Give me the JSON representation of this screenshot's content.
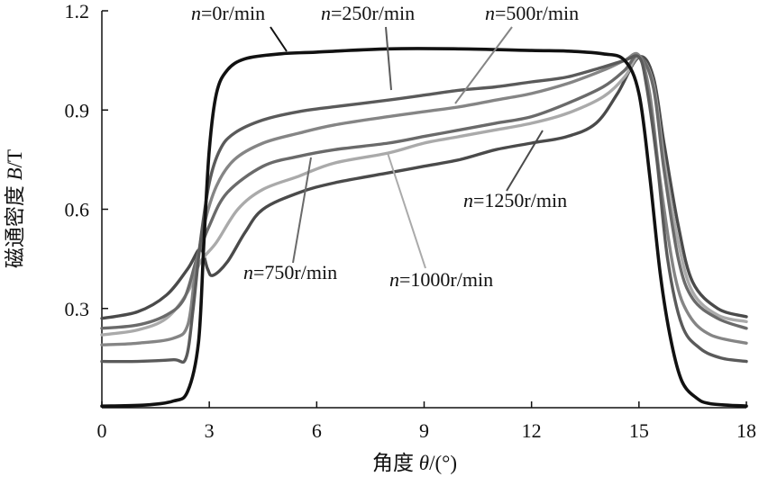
{
  "chart_data": {
    "type": "line",
    "xlabel_text": "角度 ",
    "xlabel_symbol": "θ",
    "xlabel_unit": "/(°)",
    "ylabel_text": "磁通密度 ",
    "ylabel_symbol": "B",
    "ylabel_unit": "/T",
    "xlim": [
      0,
      18
    ],
    "ylim": [
      0,
      1.2
    ],
    "x_ticks": [
      0,
      3,
      6,
      9,
      12,
      15,
      18
    ],
    "y_ticks": [
      0.3,
      0.6,
      0.9,
      1.2
    ],
    "x_tick_labels": [
      "0",
      "3",
      "6",
      "9",
      "12",
      "15",
      "18"
    ],
    "y_tick_labels": [
      "0.3",
      "0.6",
      "0.9",
      "1.2"
    ],
    "grid": false,
    "series": [
      {
        "name_var": "n",
        "name_value": "=0r/min",
        "color": "#111111",
        "points": [
          [
            0,
            0.005
          ],
          [
            1.2,
            0.008
          ],
          [
            2.0,
            0.02
          ],
          [
            2.4,
            0.05
          ],
          [
            2.7,
            0.2
          ],
          [
            2.85,
            0.5
          ],
          [
            3.0,
            0.78
          ],
          [
            3.2,
            0.95
          ],
          [
            3.5,
            1.02
          ],
          [
            4.0,
            1.055
          ],
          [
            5.0,
            1.07
          ],
          [
            6.0,
            1.075
          ],
          [
            8.0,
            1.085
          ],
          [
            10.0,
            1.085
          ],
          [
            12.0,
            1.08
          ],
          [
            13.0,
            1.078
          ],
          [
            14.0,
            1.07
          ],
          [
            14.6,
            1.05
          ],
          [
            15.0,
            0.95
          ],
          [
            15.3,
            0.7
          ],
          [
            15.6,
            0.4
          ],
          [
            15.9,
            0.2
          ],
          [
            16.2,
            0.08
          ],
          [
            16.6,
            0.03
          ],
          [
            17.0,
            0.012
          ],
          [
            18.0,
            0.005
          ]
        ]
      },
      {
        "name_var": "n",
        "name_value": "=250r/min",
        "color": "#5a5a5a",
        "points": [
          [
            0,
            0.14
          ],
          [
            1.0,
            0.14
          ],
          [
            2.0,
            0.145
          ],
          [
            2.35,
            0.15
          ],
          [
            2.55,
            0.3
          ],
          [
            2.75,
            0.5
          ],
          [
            3.0,
            0.68
          ],
          [
            3.3,
            0.78
          ],
          [
            3.7,
            0.83
          ],
          [
            4.5,
            0.87
          ],
          [
            5.5,
            0.895
          ],
          [
            6.5,
            0.91
          ],
          [
            8.0,
            0.93
          ],
          [
            9.0,
            0.945
          ],
          [
            10.0,
            0.96
          ],
          [
            11.0,
            0.97
          ],
          [
            12.0,
            0.985
          ],
          [
            13.0,
            1.0
          ],
          [
            14.0,
            1.03
          ],
          [
            14.6,
            1.05
          ],
          [
            15.0,
            1.06
          ],
          [
            15.2,
            0.98
          ],
          [
            15.5,
            0.75
          ],
          [
            15.8,
            0.45
          ],
          [
            16.2,
            0.25
          ],
          [
            16.7,
            0.18
          ],
          [
            17.3,
            0.15
          ],
          [
            18.0,
            0.14
          ]
        ]
      },
      {
        "name_var": "n",
        "name_value": "=500r/min",
        "color": "#858585",
        "points": [
          [
            0,
            0.19
          ],
          [
            1.0,
            0.195
          ],
          [
            2.0,
            0.21
          ],
          [
            2.4,
            0.25
          ],
          [
            2.6,
            0.4
          ],
          [
            2.85,
            0.55
          ],
          [
            3.2,
            0.67
          ],
          [
            3.7,
            0.75
          ],
          [
            4.5,
            0.8
          ],
          [
            5.5,
            0.83
          ],
          [
            6.5,
            0.855
          ],
          [
            8.0,
            0.88
          ],
          [
            9.0,
            0.895
          ],
          [
            10.0,
            0.91
          ],
          [
            11.0,
            0.93
          ],
          [
            12.0,
            0.95
          ],
          [
            13.0,
            0.98
          ],
          [
            14.0,
            1.02
          ],
          [
            14.6,
            1.05
          ],
          [
            15.0,
            1.065
          ],
          [
            15.3,
            0.95
          ],
          [
            15.6,
            0.68
          ],
          [
            16.0,
            0.4
          ],
          [
            16.4,
            0.28
          ],
          [
            17.0,
            0.22
          ],
          [
            18.0,
            0.195
          ]
        ]
      },
      {
        "name_var": "n",
        "name_value": "=750r/min",
        "color": "#6a6a6a",
        "points": [
          [
            0,
            0.24
          ],
          [
            1.0,
            0.25
          ],
          [
            1.8,
            0.28
          ],
          [
            2.3,
            0.33
          ],
          [
            2.65,
            0.45
          ],
          [
            3.0,
            0.55
          ],
          [
            3.5,
            0.65
          ],
          [
            4.5,
            0.73
          ],
          [
            5.5,
            0.76
          ],
          [
            6.5,
            0.78
          ],
          [
            8.0,
            0.8
          ],
          [
            9.0,
            0.82
          ],
          [
            10.0,
            0.84
          ],
          [
            11.0,
            0.86
          ],
          [
            12.0,
            0.88
          ],
          [
            13.0,
            0.92
          ],
          [
            14.0,
            0.97
          ],
          [
            14.6,
            1.02
          ],
          [
            15.0,
            1.065
          ],
          [
            15.4,
            0.97
          ],
          [
            15.7,
            0.72
          ],
          [
            16.1,
            0.45
          ],
          [
            16.5,
            0.33
          ],
          [
            17.2,
            0.27
          ],
          [
            18.0,
            0.24
          ]
        ]
      },
      {
        "name_var": "n",
        "name_value": "=1000r/min",
        "color": "#aaaaaa",
        "points": [
          [
            0,
            0.22
          ],
          [
            1.0,
            0.235
          ],
          [
            1.8,
            0.27
          ],
          [
            2.4,
            0.35
          ],
          [
            2.75,
            0.44
          ],
          [
            3.2,
            0.5
          ],
          [
            3.8,
            0.6
          ],
          [
            4.5,
            0.66
          ],
          [
            5.5,
            0.7
          ],
          [
            6.5,
            0.74
          ],
          [
            8.0,
            0.77
          ],
          [
            9.0,
            0.8
          ],
          [
            10.0,
            0.82
          ],
          [
            11.0,
            0.84
          ],
          [
            12.0,
            0.86
          ],
          [
            13.0,
            0.89
          ],
          [
            14.0,
            0.94
          ],
          [
            14.6,
            1.0
          ],
          [
            15.0,
            1.06
          ],
          [
            15.4,
            0.98
          ],
          [
            15.7,
            0.75
          ],
          [
            16.1,
            0.5
          ],
          [
            16.5,
            0.35
          ],
          [
            17.2,
            0.28
          ],
          [
            18.0,
            0.26
          ]
        ]
      },
      {
        "name_var": "n",
        "name_value": "=1250r/min",
        "color": "#4a4a4a",
        "points": [
          [
            0,
            0.27
          ],
          [
            1.0,
            0.29
          ],
          [
            1.8,
            0.34
          ],
          [
            2.4,
            0.42
          ],
          [
            2.75,
            0.48
          ],
          [
            2.95,
            0.42
          ],
          [
            3.1,
            0.4
          ],
          [
            3.5,
            0.44
          ],
          [
            4.0,
            0.53
          ],
          [
            4.5,
            0.6
          ],
          [
            5.5,
            0.65
          ],
          [
            6.5,
            0.68
          ],
          [
            8.0,
            0.71
          ],
          [
            9.0,
            0.73
          ],
          [
            10.0,
            0.75
          ],
          [
            11.0,
            0.78
          ],
          [
            12.0,
            0.8
          ],
          [
            13.0,
            0.82
          ],
          [
            13.8,
            0.86
          ],
          [
            14.4,
            0.95
          ],
          [
            15.0,
            1.06
          ],
          [
            15.4,
            1.0
          ],
          [
            15.7,
            0.8
          ],
          [
            16.1,
            0.55
          ],
          [
            16.5,
            0.38
          ],
          [
            17.2,
            0.3
          ],
          [
            18.0,
            0.275
          ]
        ]
      }
    ],
    "label_layout": [
      {
        "tx": 212,
        "ty": 22,
        "anchor": "start",
        "lead": [
          [
            300,
            30
          ],
          [
            318,
            57
          ]
        ]
      },
      {
        "tx": 356,
        "ty": 22,
        "anchor": "start",
        "lead": [
          [
            428,
            30
          ],
          [
            434,
            100
          ]
        ]
      },
      {
        "tx": 538,
        "ty": 22,
        "anchor": "start",
        "lead": [
          [
            568,
            30
          ],
          [
            505,
            115
          ]
        ]
      },
      {
        "tx": 270,
        "ty": 310,
        "anchor": "start",
        "lead": [
          [
            325,
            292
          ],
          [
            345,
            175
          ]
        ]
      },
      {
        "tx": 432,
        "ty": 318,
        "anchor": "start",
        "lead": [
          [
            472,
            298
          ],
          [
            430,
            170
          ]
        ]
      },
      {
        "tx": 514,
        "ty": 230,
        "anchor": "start",
        "lead": [
          [
            562,
            212
          ],
          [
            602,
            145
          ]
        ]
      }
    ]
  }
}
